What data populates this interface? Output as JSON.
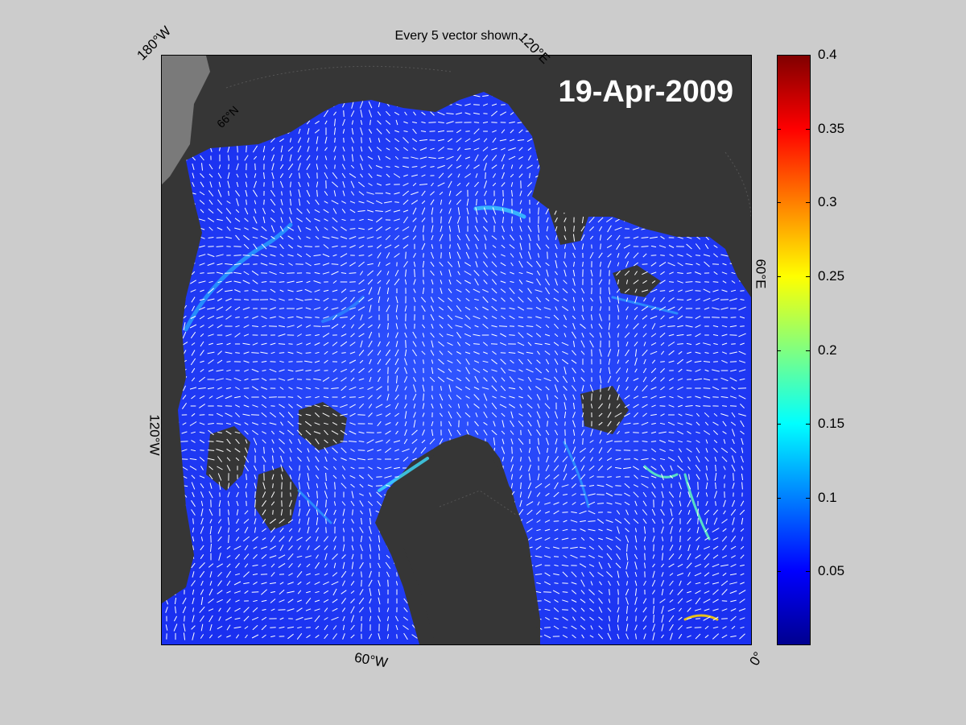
{
  "title": "Every 5 vector shown",
  "date": "19-Apr-2009",
  "longitude_labels": {
    "w180": "180°W",
    "e120": "120°E",
    "e60": "60°E",
    "w120": "120°W",
    "w60": "60°W",
    "zero": "0°"
  },
  "latitude_label": "66°N",
  "colorbar": {
    "min": 0,
    "max": 0.4,
    "ticks": [
      "0.4",
      "0.35",
      "0.3",
      "0.25",
      "0.2",
      "0.15",
      "0.1",
      "0.05"
    ],
    "colormap": "jet"
  },
  "colors": {
    "background": "#cccccc",
    "land": "#363636",
    "land_outside_grid": "#7a7a7a",
    "ice_field": "#1f3cff",
    "vectors": "#ffffff"
  }
}
